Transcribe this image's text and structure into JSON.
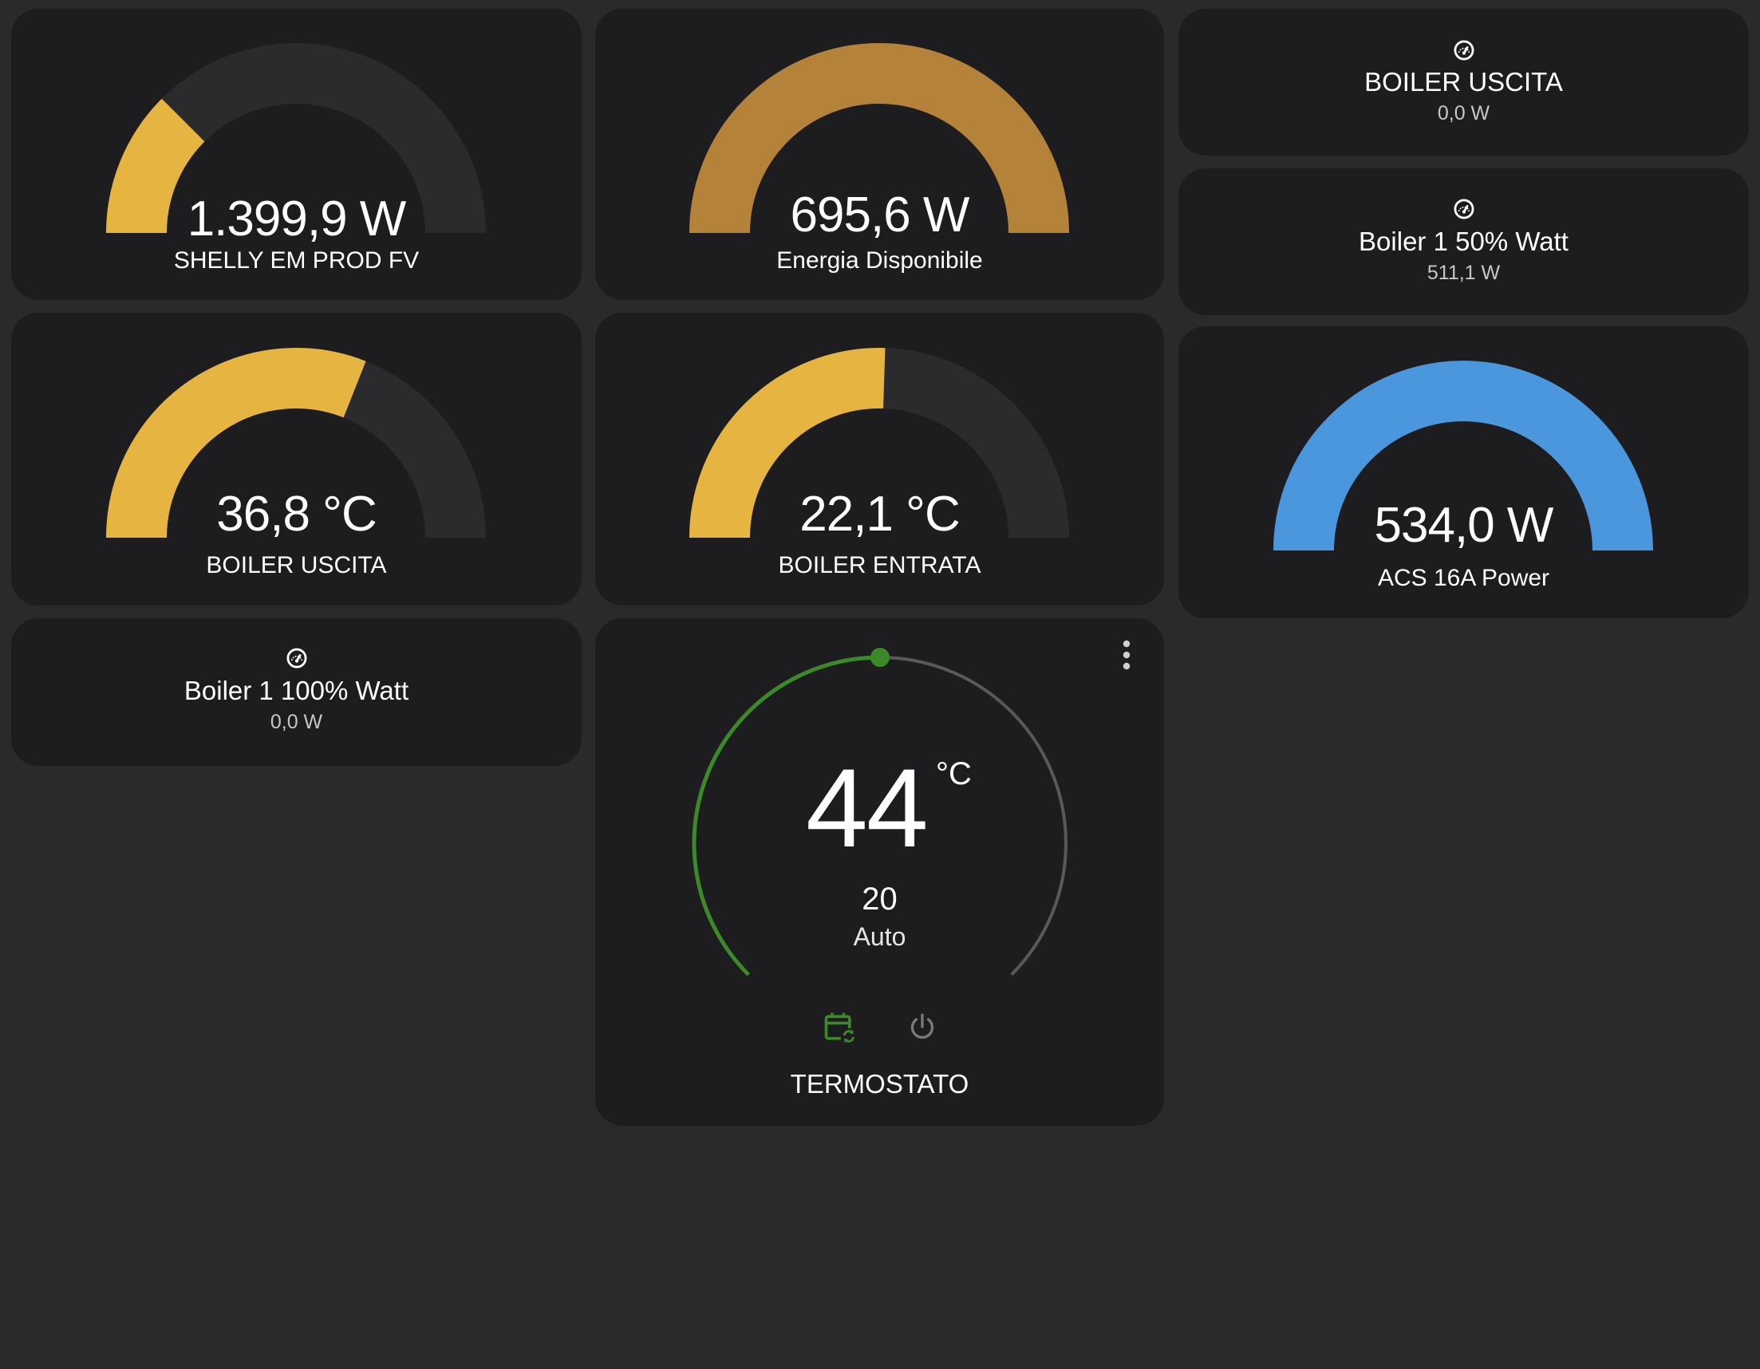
{
  "gauges": [
    {
      "id": "shelly",
      "value": "1.399,9 W",
      "name": "SHELLY EM PROD FV",
      "fill": 0.25,
      "color": "#e6b541"
    },
    {
      "id": "energia",
      "value": "695,6 W",
      "name": "Energia Disponibile",
      "fill": 1.0,
      "color": "#b5823a"
    },
    {
      "id": "boiler_uscita",
      "value": "36,8 °C",
      "name": "BOILER USCITA",
      "fill": 0.62,
      "color": "#e6b541"
    },
    {
      "id": "boiler_entrata",
      "value": "22,1 °C",
      "name": "BOILER ENTRATA",
      "fill": 0.51,
      "color": "#e6b541"
    },
    {
      "id": "acs",
      "value": "534,0 W",
      "name": "ACS 16A Power",
      "fill": 1.0,
      "color": "#4a97dd"
    }
  ],
  "entities": [
    {
      "id": "boiler_uscita_w",
      "name": "BOILER USCITA",
      "state": "0,0 W",
      "icon": "gauge-icon"
    },
    {
      "id": "boiler_50",
      "name": "Boiler 1 50% Watt",
      "state": "511,1 W",
      "icon": "gauge-icon"
    },
    {
      "id": "boiler_100",
      "name": "Boiler 1 100% Watt",
      "state": "0,0 W",
      "icon": "gauge-icon"
    }
  ],
  "thermostat": {
    "current": "44",
    "unit": "°C",
    "target": "20",
    "mode": "Auto",
    "name": "TERMOSTATO",
    "progress": 0.5,
    "colors": {
      "active": "#3c8a27",
      "track": "#59595b"
    },
    "buttons": [
      {
        "id": "auto",
        "icon": "calendar-sync-icon",
        "color": "#3c8a27"
      },
      {
        "id": "off",
        "icon": "power-icon",
        "color": "#7a7a7c"
      }
    ]
  },
  "colors": {
    "background": "#2a2a2c",
    "card": "#1d1d1f",
    "gauge_track": "#2b2b2d",
    "text_secondary": "#c7c7c9"
  }
}
